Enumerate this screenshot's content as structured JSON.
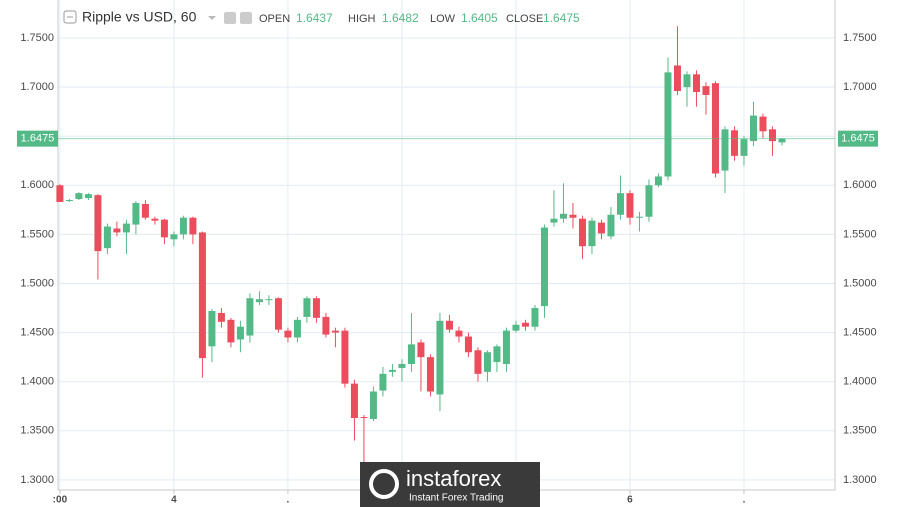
{
  "chart_data": {
    "type": "candlestick",
    "title": "Ripple vs USD, 60",
    "ohlc_labels": [
      "OPEN",
      "HIGH",
      "LOW",
      "CLOSE"
    ],
    "ohlc_values": [
      1.6437,
      1.6482,
      1.6405,
      1.6475
    ],
    "up_color": "#53b987",
    "down_color": "#eb4d5c",
    "x": [
      0,
      1,
      2,
      3,
      4,
      5,
      6,
      7,
      8,
      9,
      10,
      11,
      12,
      13,
      14,
      15,
      16,
      17,
      18,
      19,
      20,
      21,
      22,
      23,
      24,
      25,
      26,
      27,
      28,
      29,
      30,
      31,
      32,
      33,
      34,
      35,
      36,
      37,
      38,
      39,
      40,
      41,
      42,
      43,
      44,
      45,
      46,
      47,
      48,
      49,
      50,
      51,
      52,
      53,
      54,
      55,
      56,
      57,
      58,
      59,
      60,
      61,
      62,
      63,
      64,
      65,
      66,
      67,
      68,
      69,
      70,
      71,
      72,
      73,
      74,
      75,
      76
    ],
    "open": [
      1.6,
      1.584,
      1.586,
      1.587,
      1.59,
      1.536,
      1.556,
      1.552,
      1.56,
      1.581,
      1.566,
      1.565,
      1.545,
      1.55,
      1.567,
      1.552,
      1.436,
      1.47,
      1.463,
      1.443,
      1.447,
      1.481,
      1.483,
      1.485,
      1.452,
      1.445,
      1.466,
      1.485,
      1.466,
      1.452,
      1.452,
      1.398,
      1.364,
      1.362,
      1.391,
      1.41,
      1.414,
      1.418,
      1.44,
      1.425,
      1.387,
      1.462,
      1.452,
      1.446,
      1.432,
      1.41,
      1.42,
      1.418,
      1.452,
      1.46,
      1.456,
      1.477,
      1.562,
      1.566,
      1.57,
      1.566,
      1.538,
      1.562,
      1.548,
      1.57,
      1.592,
      1.567,
      1.568,
      1.6,
      1.609,
      1.722,
      1.7,
      1.713,
      1.701,
      1.704,
      1.615,
      1.656,
      1.63,
      1.645,
      1.67,
      1.657,
      1.6437
    ],
    "high": [
      1.601,
      1.586,
      1.593,
      1.592,
      1.591,
      1.561,
      1.563,
      1.565,
      1.584,
      1.585,
      1.568,
      1.566,
      1.553,
      1.569,
      1.568,
      1.553,
      1.474,
      1.475,
      1.465,
      1.462,
      1.49,
      1.492,
      1.488,
      1.486,
      1.455,
      1.466,
      1.487,
      1.487,
      1.47,
      1.455,
      1.455,
      1.402,
      1.366,
      1.395,
      1.415,
      1.418,
      1.423,
      1.47,
      1.443,
      1.428,
      1.47,
      1.468,
      1.456,
      1.45,
      1.435,
      1.432,
      1.438,
      1.455,
      1.462,
      1.463,
      1.478,
      1.56,
      1.595,
      1.602,
      1.582,
      1.569,
      1.567,
      1.565,
      1.578,
      1.61,
      1.595,
      1.573,
      1.606,
      1.612,
      1.73,
      1.762,
      1.716,
      1.717,
      1.705,
      1.706,
      1.66,
      1.66,
      1.65,
      1.685,
      1.673,
      1.66,
      1.6482
    ],
    "low": [
      1.583,
      1.583,
      1.585,
      1.585,
      1.504,
      1.53,
      1.548,
      1.53,
      1.55,
      1.565,
      1.56,
      1.54,
      1.538,
      1.545,
      1.54,
      1.404,
      1.42,
      1.455,
      1.435,
      1.43,
      1.44,
      1.478,
      1.478,
      1.45,
      1.44,
      1.44,
      1.46,
      1.46,
      1.445,
      1.435,
      1.394,
      1.34,
      1.318,
      1.36,
      1.385,
      1.405,
      1.4,
      1.41,
      1.39,
      1.385,
      1.37,
      1.45,
      1.44,
      1.425,
      1.4,
      1.4,
      1.41,
      1.41,
      1.45,
      1.452,
      1.452,
      1.465,
      1.558,
      1.562,
      1.556,
      1.525,
      1.53,
      1.545,
      1.545,
      1.565,
      1.56,
      1.553,
      1.563,
      1.598,
      1.605,
      1.692,
      1.68,
      1.68,
      1.672,
      1.608,
      1.592,
      1.625,
      1.62,
      1.64,
      1.648,
      1.63,
      1.6405
    ],
    "close": [
      1.583,
      1.585,
      1.592,
      1.591,
      1.533,
      1.558,
      1.552,
      1.561,
      1.582,
      1.567,
      1.564,
      1.547,
      1.55,
      1.567,
      1.55,
      1.424,
      1.472,
      1.461,
      1.44,
      1.456,
      1.485,
      1.484,
      1.484,
      1.453,
      1.445,
      1.463,
      1.485,
      1.465,
      1.448,
      1.45,
      1.398,
      1.363,
      1.363,
      1.39,
      1.408,
      1.412,
      1.418,
      1.438,
      1.425,
      1.39,
      1.462,
      1.453,
      1.446,
      1.43,
      1.408,
      1.43,
      1.436,
      1.452,
      1.458,
      1.456,
      1.475,
      1.557,
      1.566,
      1.571,
      1.567,
      1.538,
      1.564,
      1.551,
      1.57,
      1.592,
      1.567,
      1.568,
      1.6,
      1.609,
      1.715,
      1.696,
      1.713,
      1.695,
      1.692,
      1.612,
      1.657,
      1.63,
      1.647,
      1.671,
      1.655,
      1.645,
      1.6475
    ],
    "last_price": 1.6475,
    "xlim": [
      -0.2,
      81.58
    ],
    "xticks": [
      {
        "value": 0,
        "label": ":00"
      },
      {
        "value": 12,
        "label": "4"
      },
      {
        "value": 24,
        "label": "."
      },
      {
        "value": 36,
        "label": "."
      },
      {
        "value": 48,
        "label": "."
      },
      {
        "value": 60,
        "label": "6"
      },
      {
        "value": 72,
        "label": "."
      }
    ],
    "ylim": [
      1.2897,
      1.7887
    ],
    "yticks": [
      {
        "value": 1.3,
        "label": "1.3000"
      },
      {
        "value": 1.35,
        "label": "1.3500"
      },
      {
        "value": 1.4,
        "label": "1.4000"
      },
      {
        "value": 1.45,
        "label": "1.4500"
      },
      {
        "value": 1.5,
        "label": "1.5000"
      },
      {
        "value": 1.55,
        "label": "1.5500"
      },
      {
        "value": 1.6,
        "label": "1.6000"
      },
      {
        "value": 1.65,
        "label": "1.6500"
      },
      {
        "value": 1.7,
        "label": "1.7000"
      },
      {
        "value": 1.75,
        "label": "1.7500"
      }
    ],
    "grid": true
  },
  "watermark": {
    "brand": "instaforex",
    "tagline": "Instant Forex Trading"
  }
}
